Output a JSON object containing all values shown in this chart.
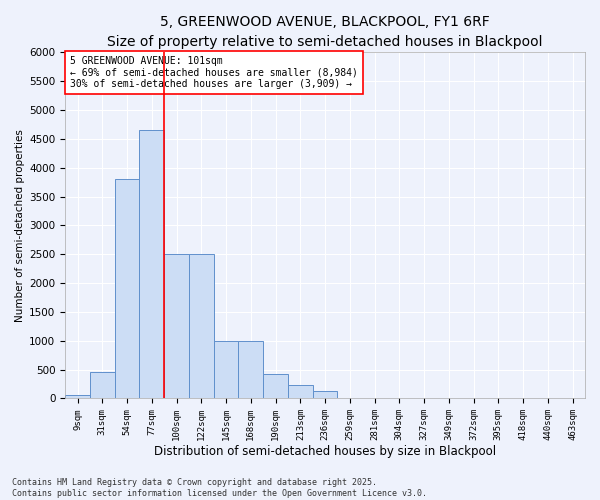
{
  "title": "5, GREENWOOD AVENUE, BLACKPOOL, FY1 6RF",
  "subtitle": "Size of property relative to semi-detached houses in Blackpool",
  "xlabel": "Distribution of semi-detached houses by size in Blackpool",
  "ylabel": "Number of semi-detached properties",
  "categories": [
    "9sqm",
    "31sqm",
    "54sqm",
    "77sqm",
    "100sqm",
    "122sqm",
    "145sqm",
    "168sqm",
    "190sqm",
    "213sqm",
    "236sqm",
    "259sqm",
    "281sqm",
    "304sqm",
    "327sqm",
    "349sqm",
    "372sqm",
    "395sqm",
    "418sqm",
    "440sqm",
    "463sqm"
  ],
  "values": [
    50,
    460,
    3800,
    4650,
    2500,
    2500,
    1000,
    1000,
    420,
    230,
    130,
    0,
    0,
    0,
    0,
    0,
    0,
    0,
    0,
    0,
    0
  ],
  "bar_color": "#ccddf5",
  "bar_edge_color": "#6090cc",
  "vline_x_index": 4,
  "vline_color": "red",
  "annotation_text": "5 GREENWOOD AVENUE: 101sqm\n← 69% of semi-detached houses are smaller (8,984)\n30% of semi-detached houses are larger (3,909) →",
  "annotation_box_facecolor": "white",
  "annotation_box_edgecolor": "red",
  "ylim_max": 6000,
  "ytick_step": 500,
  "footnote": "Contains HM Land Registry data © Crown copyright and database right 2025.\nContains public sector information licensed under the Open Government Licence v3.0.",
  "bg_color": "#eef2fc",
  "grid_color": "white",
  "title_fontsize": 10,
  "subtitle_fontsize": 8.5,
  "xlabel_fontsize": 8.5,
  "ylabel_fontsize": 7.5,
  "xtick_fontsize": 6.5,
  "ytick_fontsize": 7.5,
  "footnote_fontsize": 6,
  "annot_fontsize": 7
}
